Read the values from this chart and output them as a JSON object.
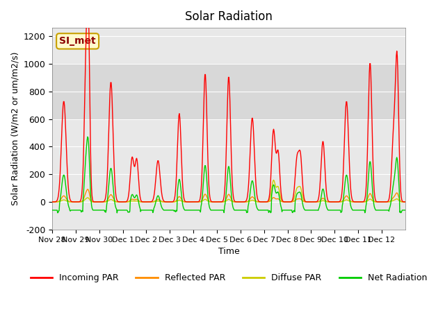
{
  "title": "Solar Radiation",
  "ylabel": "Solar Radiation (W/m2 or um/m2/s)",
  "xlabel": "Time",
  "ylim": [
    -200,
    1260
  ],
  "yticks": [
    -200,
    0,
    200,
    400,
    600,
    800,
    1000,
    1200
  ],
  "annotation_text": "SI_met",
  "annotation_color": "#8B0000",
  "annotation_bg": "#FFFACD",
  "annotation_border": "#C8A000",
  "colors": {
    "incoming": "#FF0000",
    "reflected": "#FF8C00",
    "diffuse": "#CCCC00",
    "net": "#00CC00"
  },
  "legend_labels": [
    "Incoming PAR",
    "Reflected PAR",
    "Diffuse PAR",
    "Net Radiation"
  ],
  "num_days": 15,
  "start_day": 0,
  "bg_color": "#E8E8E8",
  "plot_bg": "#E8E8E8"
}
